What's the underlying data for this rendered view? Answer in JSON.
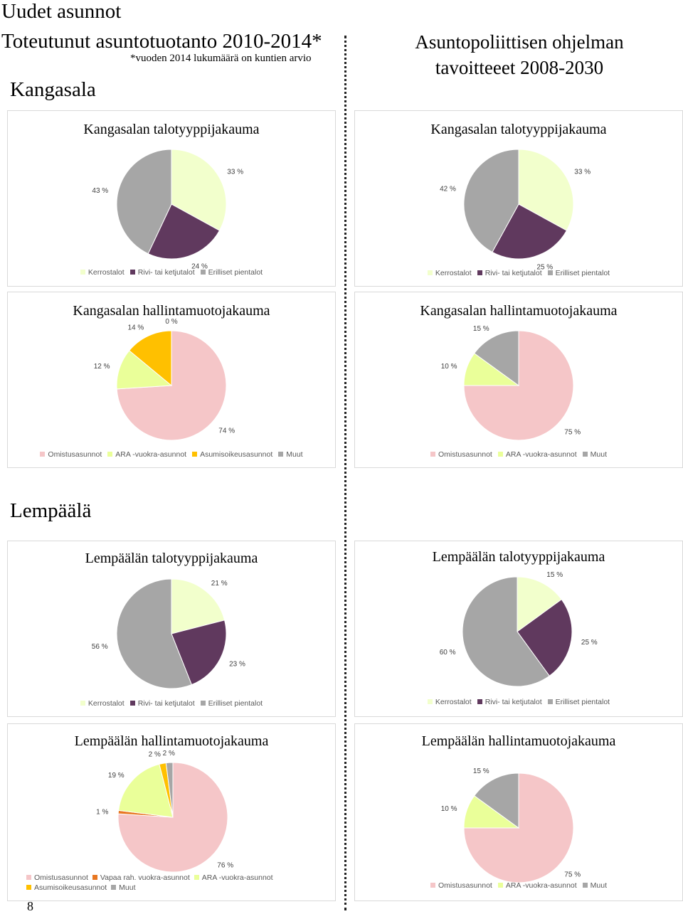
{
  "page": {
    "title": "Uudet asunnot",
    "left_heading": "Toteutunut asuntotuotanto 2010-2014*",
    "left_note": "*vuoden 2014 lukumäärä on kuntien arvio",
    "right_heading_line1": "Asuntopoliittisen ohjelman",
    "right_heading_line2": "tavoitteeet 2008-2030",
    "section_kangasala": "Kangasala",
    "section_lempaala": "Lempäälä",
    "page_number": "8"
  },
  "colors": {
    "Kerrostalot": "#F2FFCC",
    "Rivi- tai ketjutalot": "#60395E",
    "Erilliset pientalot": "#A6A6A6",
    "Omistusasunnot": "#F5C6C8",
    "ARA -vuokra-asunnot": "#EAFF99",
    "Asumisoikeusasunnot": "#FFC000",
    "Muut": "#A6A6A6",
    "Vapaa rah. vuokra-asunnot": "#E87722"
  },
  "chart_data": [
    {
      "type": "pie",
      "title": "Kangasalan talotyyppijakauma",
      "categories": [
        "Kerrostalot",
        "Rivi- tai ketjutalot",
        "Erilliset pientalot"
      ],
      "values": [
        33,
        24,
        43
      ],
      "labels": [
        "33 %",
        "24 %",
        "43 %"
      ],
      "legend": "bottom"
    },
    {
      "type": "pie",
      "title": "Kangasalan talotyyppijakauma",
      "categories": [
        "Kerrostalot",
        "Rivi- tai ketjutalot",
        "Erilliset pientalot"
      ],
      "values": [
        33,
        25,
        42
      ],
      "labels": [
        "33 %",
        "25 %",
        "42 %"
      ],
      "legend": "bottom"
    },
    {
      "type": "pie",
      "title": "Kangasalan hallintamuotojakauma",
      "categories": [
        "Omistusasunnot",
        "ARA -vuokra-asunnot",
        "Asumisoikeusasunnot",
        "Muut"
      ],
      "values": [
        74,
        12,
        14,
        0
      ],
      "labels": [
        "74 %",
        "12 %",
        "14 %",
        "0 %"
      ],
      "legend": "bottom"
    },
    {
      "type": "pie",
      "title": "Kangasalan hallintamuotojakauma",
      "categories": [
        "Omistusasunnot",
        "ARA -vuokra-asunnot",
        "Muut"
      ],
      "values": [
        75,
        10,
        15
      ],
      "labels": [
        "75 %",
        "10 %",
        "15 %"
      ],
      "legend": "bottom"
    },
    {
      "type": "pie",
      "title": "Lempäälän talotyyppijakauma",
      "categories": [
        "Kerrostalot",
        "Rivi- tai ketjutalot",
        "Erilliset pientalot"
      ],
      "values": [
        21,
        23,
        56
      ],
      "labels": [
        "21 %",
        "23 %",
        "56 %"
      ],
      "legend": "bottom"
    },
    {
      "type": "pie",
      "title": "Lempäälän talotyyppijakauma",
      "categories": [
        "Kerrostalot",
        "Rivi- tai ketjutalot",
        "Erilliset pientalot"
      ],
      "values": [
        15,
        25,
        60
      ],
      "labels": [
        "15 %",
        "25 %",
        "60 %"
      ],
      "legend": "bottom"
    },
    {
      "type": "pie",
      "title": "Lempäälän hallintamuotojakauma",
      "categories": [
        "Omistusasunnot",
        "Vapaa rah. vuokra-asunnot",
        "ARA -vuokra-asunnot",
        "Asumisoikeusasunnot",
        "Muut"
      ],
      "values": [
        76,
        1,
        19,
        2,
        2
      ],
      "labels": [
        "76 %",
        "1 %",
        "19 %",
        "2 %",
        "2 %"
      ],
      "legend": "bottom"
    },
    {
      "type": "pie",
      "title": "Lempäälän hallintamuotojakauma",
      "categories": [
        "Omistusasunnot",
        "ARA -vuokra-asunnot",
        "Muut"
      ],
      "values": [
        75,
        10,
        15
      ],
      "labels": [
        "75 %",
        "10 %",
        "15 %"
      ],
      "legend": "bottom"
    }
  ]
}
